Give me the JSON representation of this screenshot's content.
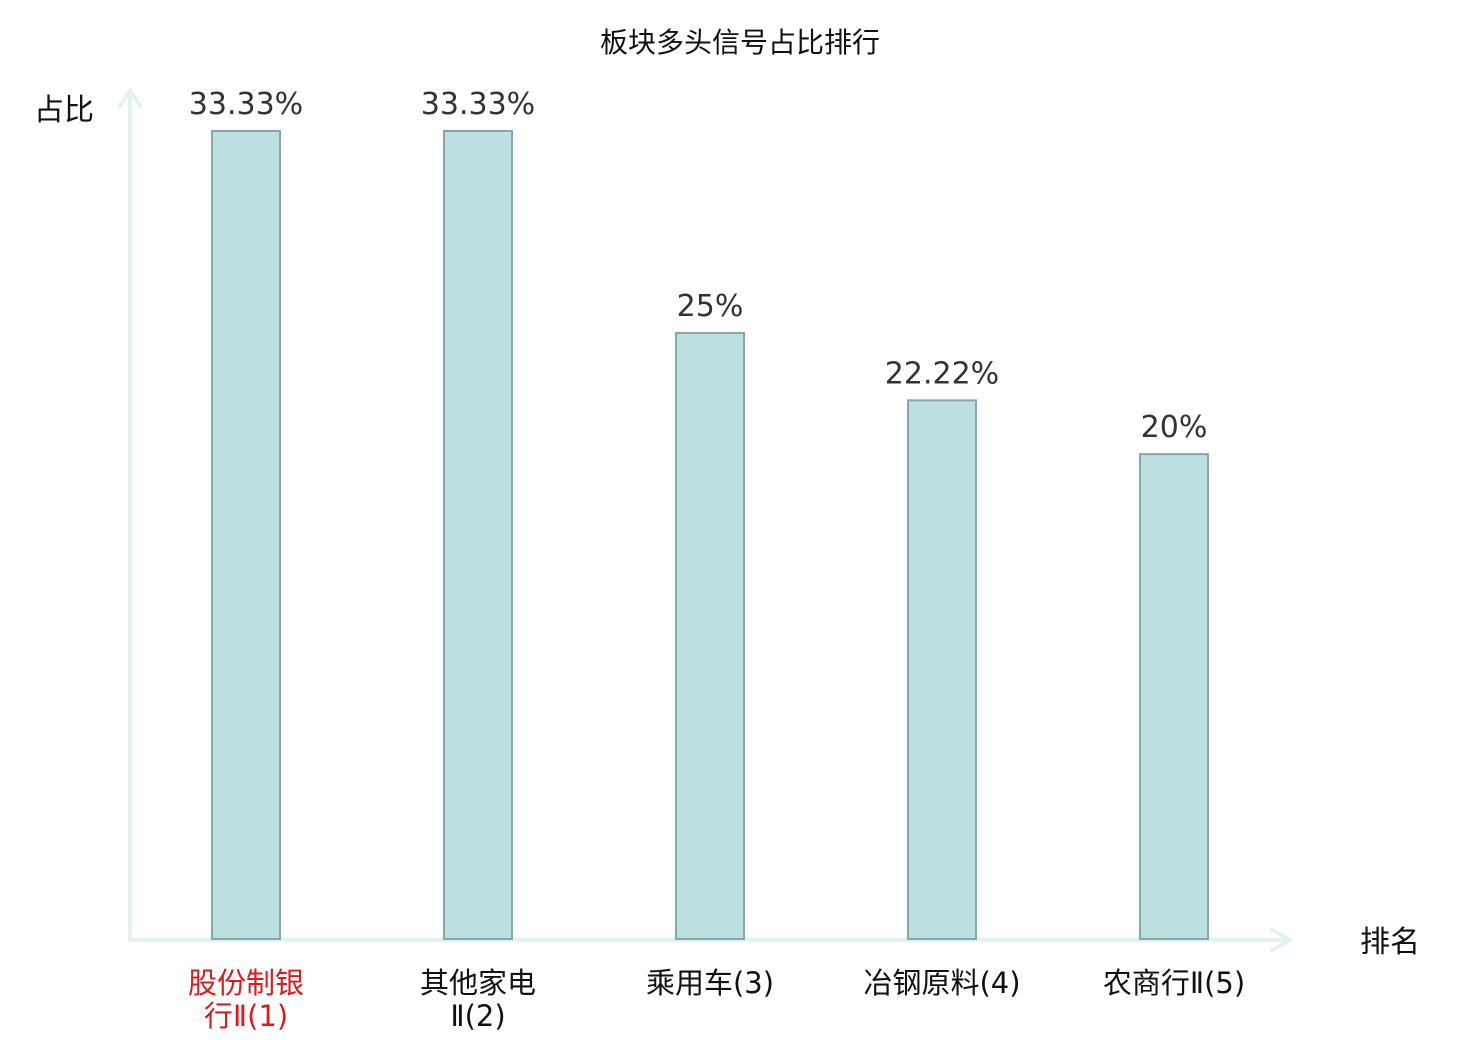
{
  "chart_data": {
    "type": "bar",
    "title": "板块多头信号占比排行",
    "xlabel": "排名",
    "ylabel": "占比",
    "categories": [
      [
        "股份制银",
        "行Ⅱ(1)"
      ],
      [
        "其他家电",
        "Ⅱ(2)"
      ],
      [
        "乘用车(3)"
      ],
      [
        "冶钢原料(4)"
      ],
      [
        "农商行Ⅱ(5)"
      ]
    ],
    "values": [
      33.33,
      33.33,
      25,
      22.22,
      20
    ],
    "value_labels": [
      "33.33%",
      "33.33%",
      "25%",
      "22.22%",
      "20%"
    ],
    "ylim": [
      0,
      33.33
    ],
    "grid": false,
    "legend": "none",
    "highlight_index": 0,
    "colors": {
      "bar_fill": "#bce0e1",
      "bar_stroke": "#86a6a7",
      "axis": "#e2f2f0",
      "highlight_label": "#e0191a",
      "label": "#111111"
    }
  }
}
